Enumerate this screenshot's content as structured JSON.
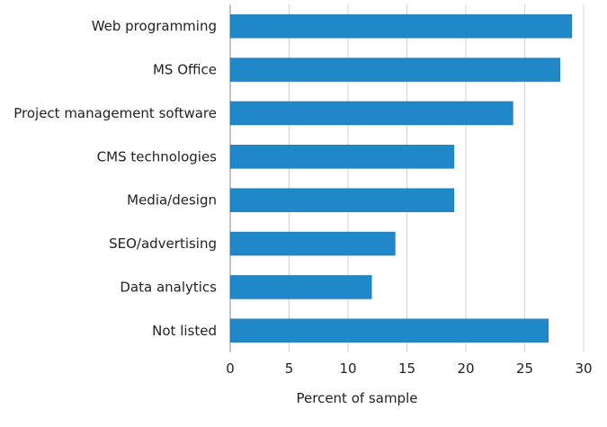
{
  "chart_data": {
    "type": "bar",
    "orientation": "horizontal",
    "title": "",
    "xlabel": "Percent of sample",
    "ylabel": "",
    "categories": [
      "Web programming",
      "MS Office",
      "Project management software",
      "CMS technologies",
      "Media/design",
      "SEO/advertising",
      "Data analytics",
      "Not listed"
    ],
    "values": [
      29,
      28,
      24,
      19,
      19,
      14,
      12,
      27
    ],
    "xlim": [
      0,
      30
    ],
    "xticks": [
      "0",
      "5",
      "10",
      "15",
      "20",
      "25",
      "30"
    ],
    "grid": true,
    "bar_color": "#2088C8"
  }
}
